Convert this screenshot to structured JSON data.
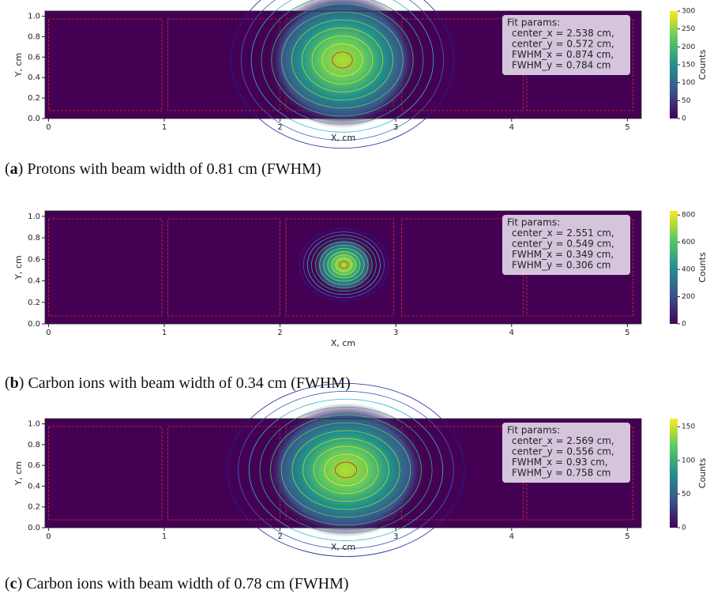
{
  "chart_data": [
    {
      "type": "heatmap",
      "xlabel": "X, cm",
      "ylabel": "Y, cm",
      "colorbar_label": "Counts",
      "xlim": [
        -0.03,
        5.12
      ],
      "ylim": [
        0,
        1.05
      ],
      "xticks": [
        0,
        1,
        2,
        3,
        4,
        5
      ],
      "yticks": [
        {
          "value": 0,
          "label": "0.0"
        },
        0.2,
        0.4,
        0.6,
        0.8,
        {
          "value": 1,
          "label": "1.0"
        }
      ],
      "clim": [
        0,
        300
      ],
      "cticks": [
        0,
        50,
        100,
        150,
        200,
        250,
        300
      ],
      "fit_title": "Fit params:",
      "fit": [
        {
          "label": "center_x =",
          "value": 2.538,
          "unit": "cm,"
        },
        {
          "label": "center_y =",
          "value": 0.572,
          "unit": "cm,"
        },
        {
          "label": "FWHM_x =",
          "value": 0.874,
          "unit": "cm,"
        },
        {
          "label": "FWHM_y =",
          "value": 0.784,
          "unit": "cm"
        }
      ],
      "caption_label": "a",
      "caption": "Protons with beam width of 0.81 cm (FWHM)"
    },
    {
      "type": "heatmap",
      "xlabel": "X, cm",
      "ylabel": "Y, cm",
      "colorbar_label": "Counts",
      "xlim": [
        -0.03,
        5.12
      ],
      "ylim": [
        0,
        1.05
      ],
      "xticks": [
        0,
        1,
        2,
        3,
        4,
        5
      ],
      "yticks": [
        {
          "value": 0,
          "label": "0.0"
        },
        0.2,
        0.4,
        0.6,
        0.8,
        {
          "value": 1,
          "label": "1.0"
        }
      ],
      "clim": [
        0,
        830
      ],
      "cticks": [
        0,
        200,
        400,
        600,
        800
      ],
      "fit_title": "Fit params:",
      "fit": [
        {
          "label": "center_x =",
          "value": 2.551,
          "unit": "cm,"
        },
        {
          "label": "center_y =",
          "value": 0.549,
          "unit": "cm,"
        },
        {
          "label": "FWHM_x =",
          "value": 0.349,
          "unit": "cm,"
        },
        {
          "label": "FWHM_y =",
          "value": 0.306,
          "unit": "cm"
        }
      ],
      "caption_label": "b",
      "caption": "Carbon ions with beam width of 0.34 cm (FWHM)"
    },
    {
      "type": "heatmap",
      "xlabel": "X, cm",
      "ylabel": "Y, cm",
      "colorbar_label": "Counts",
      "xlim": [
        -0.03,
        5.12
      ],
      "ylim": [
        0,
        1.05
      ],
      "xticks": [
        0,
        1,
        2,
        3,
        4,
        5
      ],
      "yticks": [
        {
          "value": 0,
          "label": "0.0"
        },
        0.2,
        0.4,
        0.6,
        0.8,
        {
          "value": 1,
          "label": "1.0"
        }
      ],
      "clim": [
        0,
        162
      ],
      "cticks": [
        0,
        50,
        100,
        150
      ],
      "fit_title": "Fit params:",
      "fit": [
        {
          "label": "center_x =",
          "value": 2.569,
          "unit": "cm,"
        },
        {
          "label": "center_y =",
          "value": 0.556,
          "unit": "cm,"
        },
        {
          "label": "FWHM_x =",
          "value": 0.93,
          "unit": "cm,"
        },
        {
          "label": "FWHM_y =",
          "value": 0.758,
          "unit": "cm"
        }
      ],
      "caption_label": "c",
      "caption": "Carbon ions with beam width of 0.78 cm (FWHM)"
    }
  ]
}
